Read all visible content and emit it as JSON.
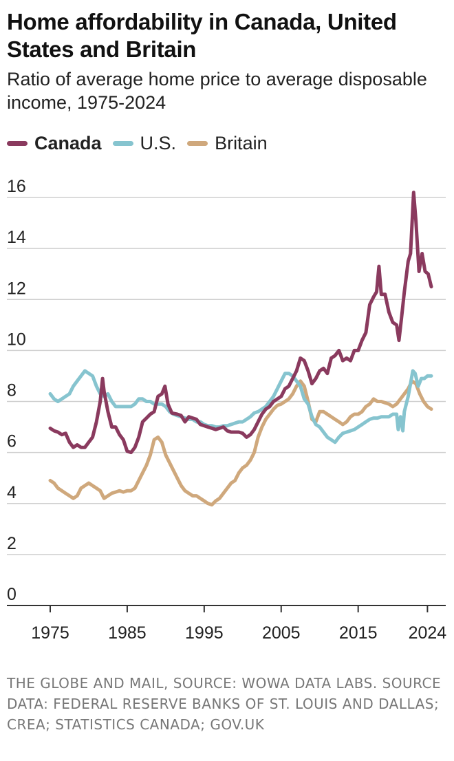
{
  "chart_data": {
    "type": "line",
    "title": "Home affordability in Canada, United States and Britain",
    "subtitle": "Ratio of average home price to average disposable income, 1975-2024",
    "xlabel": "",
    "ylabel": "",
    "xlim": [
      1975,
      2025
    ],
    "ylim": [
      0,
      16
    ],
    "x_ticks": [
      1975,
      1985,
      1995,
      2005,
      2015,
      2024
    ],
    "x_tick_labels": [
      "1975",
      "1985",
      "1995",
      "2005",
      "2015",
      "2024"
    ],
    "y_ticks": [
      0,
      2,
      4,
      6,
      8,
      10,
      12,
      14,
      16
    ],
    "y_tick_labels": [
      "0",
      "2",
      "4",
      "6",
      "8",
      "10",
      "12",
      "14",
      "16"
    ],
    "grid": "horizontal",
    "legend_position": "top-left",
    "series": [
      {
        "name": "Canada",
        "color": "#8a3a5e",
        "bold": true,
        "points": [
          [
            1975,
            6.95
          ],
          [
            1975.5,
            6.85
          ],
          [
            1976,
            6.8
          ],
          [
            1976.5,
            6.7
          ],
          [
            1977,
            6.75
          ],
          [
            1977.5,
            6.4
          ],
          [
            1978,
            6.2
          ],
          [
            1978.5,
            6.3
          ],
          [
            1979,
            6.2
          ],
          [
            1979.5,
            6.2
          ],
          [
            1980,
            6.4
          ],
          [
            1980.5,
            6.6
          ],
          [
            1981,
            7.2
          ],
          [
            1981.5,
            8.0
          ],
          [
            1981.8,
            8.9
          ],
          [
            1982,
            8.4
          ],
          [
            1982.5,
            7.6
          ],
          [
            1983,
            7.0
          ],
          [
            1983.5,
            7.0
          ],
          [
            1984,
            6.7
          ],
          [
            1984.5,
            6.5
          ],
          [
            1985,
            6.05
          ],
          [
            1985.5,
            6.0
          ],
          [
            1986,
            6.2
          ],
          [
            1986.5,
            6.6
          ],
          [
            1987,
            7.2
          ],
          [
            1987.5,
            7.35
          ],
          [
            1988,
            7.5
          ],
          [
            1988.5,
            7.6
          ],
          [
            1989,
            8.2
          ],
          [
            1989.5,
            8.3
          ],
          [
            1989.9,
            8.6
          ],
          [
            1990.3,
            7.9
          ],
          [
            1990.8,
            7.55
          ],
          [
            1991.5,
            7.5
          ],
          [
            1992,
            7.45
          ],
          [
            1992.5,
            7.2
          ],
          [
            1993,
            7.4
          ],
          [
            1993.5,
            7.35
          ],
          [
            1994,
            7.3
          ],
          [
            1994.5,
            7.1
          ],
          [
            1995,
            7.05
          ],
          [
            1995.5,
            7.0
          ],
          [
            1996,
            6.95
          ],
          [
            1996.5,
            6.9
          ],
          [
            1997,
            6.95
          ],
          [
            1997.5,
            7.0
          ],
          [
            1998,
            6.85
          ],
          [
            1998.5,
            6.8
          ],
          [
            1999,
            6.8
          ],
          [
            1999.5,
            6.8
          ],
          [
            2000,
            6.75
          ],
          [
            2000.5,
            6.6
          ],
          [
            2001,
            6.7
          ],
          [
            2001.5,
            6.9
          ],
          [
            2002,
            7.2
          ],
          [
            2002.5,
            7.5
          ],
          [
            2003,
            7.7
          ],
          [
            2003.5,
            7.8
          ],
          [
            2004,
            8.0
          ],
          [
            2004.5,
            8.1
          ],
          [
            2005,
            8.2
          ],
          [
            2005.5,
            8.5
          ],
          [
            2006,
            8.6
          ],
          [
            2006.5,
            8.9
          ],
          [
            2007,
            9.2
          ],
          [
            2007.5,
            9.7
          ],
          [
            2008,
            9.6
          ],
          [
            2008.5,
            9.2
          ],
          [
            2009,
            8.7
          ],
          [
            2009.5,
            8.9
          ],
          [
            2010,
            9.2
          ],
          [
            2010.5,
            9.3
          ],
          [
            2011,
            9.1
          ],
          [
            2011.5,
            9.7
          ],
          [
            2012,
            9.8
          ],
          [
            2012.5,
            10.0
          ],
          [
            2013,
            9.6
          ],
          [
            2013.5,
            9.7
          ],
          [
            2014,
            9.6
          ],
          [
            2014.5,
            10.0
          ],
          [
            2015,
            10.0
          ],
          [
            2015.5,
            10.4
          ],
          [
            2016,
            10.7
          ],
          [
            2016.5,
            11.8
          ],
          [
            2017,
            12.1
          ],
          [
            2017.4,
            12.3
          ],
          [
            2017.7,
            13.3
          ],
          [
            2018,
            12.2
          ],
          [
            2018.5,
            12.2
          ],
          [
            2019,
            11.5
          ],
          [
            2019.5,
            11.1
          ],
          [
            2020,
            11.0
          ],
          [
            2020.3,
            10.4
          ],
          [
            2020.6,
            11.2
          ],
          [
            2021,
            12.3
          ],
          [
            2021.5,
            13.5
          ],
          [
            2021.8,
            13.8
          ],
          [
            2022.2,
            16.2
          ],
          [
            2022.5,
            15.1
          ],
          [
            2022.9,
            13.1
          ],
          [
            2023.3,
            13.8
          ],
          [
            2023.7,
            13.1
          ],
          [
            2024.1,
            13.0
          ],
          [
            2024.5,
            12.5
          ]
        ]
      },
      {
        "name": "U.S.",
        "color": "#86c4cf",
        "bold": false,
        "points": [
          [
            1975,
            8.3
          ],
          [
            1975.5,
            8.1
          ],
          [
            1976,
            8.0
          ],
          [
            1976.5,
            8.1
          ],
          [
            1977,
            8.2
          ],
          [
            1977.5,
            8.3
          ],
          [
            1978,
            8.6
          ],
          [
            1978.5,
            8.8
          ],
          [
            1979,
            9.0
          ],
          [
            1979.5,
            9.2
          ],
          [
            1980,
            9.1
          ],
          [
            1980.5,
            9.0
          ],
          [
            1981,
            8.6
          ],
          [
            1981.5,
            8.3
          ],
          [
            1982,
            8.2
          ],
          [
            1982.5,
            8.3
          ],
          [
            1983,
            8.0
          ],
          [
            1983.5,
            7.8
          ],
          [
            1984,
            7.8
          ],
          [
            1984.5,
            7.8
          ],
          [
            1985,
            7.8
          ],
          [
            1985.5,
            7.8
          ],
          [
            1986,
            7.9
          ],
          [
            1986.5,
            8.1
          ],
          [
            1987,
            8.1
          ],
          [
            1987.5,
            8.0
          ],
          [
            1988,
            8.0
          ],
          [
            1988.5,
            7.9
          ],
          [
            1989,
            7.9
          ],
          [
            1989.5,
            7.9
          ],
          [
            1990,
            7.8
          ],
          [
            1990.5,
            7.6
          ],
          [
            1991,
            7.5
          ],
          [
            1991.5,
            7.45
          ],
          [
            1992,
            7.4
          ],
          [
            1992.5,
            7.35
          ],
          [
            1993,
            7.3
          ],
          [
            1993.5,
            7.3
          ],
          [
            1994,
            7.2
          ],
          [
            1994.5,
            7.2
          ],
          [
            1995,
            7.1
          ],
          [
            1995.5,
            7.05
          ],
          [
            1996,
            7.05
          ],
          [
            1996.5,
            7.0
          ],
          [
            1997,
            7.0
          ],
          [
            1997.5,
            7.05
          ],
          [
            1998,
            7.05
          ],
          [
            1998.5,
            7.1
          ],
          [
            1999,
            7.15
          ],
          [
            1999.5,
            7.2
          ],
          [
            2000,
            7.2
          ],
          [
            2000.5,
            7.3
          ],
          [
            2001,
            7.4
          ],
          [
            2001.5,
            7.55
          ],
          [
            2002,
            7.6
          ],
          [
            2002.5,
            7.7
          ],
          [
            2003,
            7.8
          ],
          [
            2003.5,
            8.0
          ],
          [
            2004,
            8.2
          ],
          [
            2004.5,
            8.5
          ],
          [
            2005,
            8.8
          ],
          [
            2005.5,
            9.1
          ],
          [
            2006,
            9.1
          ],
          [
            2006.5,
            9.0
          ],
          [
            2007,
            8.8
          ],
          [
            2007.5,
            8.6
          ],
          [
            2008,
            8.1
          ],
          [
            2008.5,
            7.9
          ],
          [
            2009,
            7.4
          ],
          [
            2009.5,
            7.1
          ],
          [
            2010,
            7.0
          ],
          [
            2010.5,
            6.8
          ],
          [
            2011,
            6.6
          ],
          [
            2011.5,
            6.5
          ],
          [
            2012,
            6.4
          ],
          [
            2012.5,
            6.6
          ],
          [
            2013,
            6.75
          ],
          [
            2013.5,
            6.8
          ],
          [
            2014,
            6.85
          ],
          [
            2014.5,
            6.9
          ],
          [
            2015,
            7.0
          ],
          [
            2015.5,
            7.1
          ],
          [
            2016,
            7.2
          ],
          [
            2016.5,
            7.3
          ],
          [
            2017,
            7.35
          ],
          [
            2017.5,
            7.35
          ],
          [
            2018,
            7.4
          ],
          [
            2018.5,
            7.4
          ],
          [
            2019,
            7.4
          ],
          [
            2019.5,
            7.5
          ],
          [
            2020,
            7.5
          ],
          [
            2020.2,
            6.9
          ],
          [
            2020.5,
            7.4
          ],
          [
            2020.8,
            6.85
          ],
          [
            2021,
            7.6
          ],
          [
            2021.5,
            8.2
          ],
          [
            2021.8,
            8.7
          ],
          [
            2022.1,
            9.2
          ],
          [
            2022.4,
            9.1
          ],
          [
            2022.8,
            8.6
          ],
          [
            2023.2,
            8.9
          ],
          [
            2023.6,
            8.9
          ],
          [
            2024,
            9.0
          ],
          [
            2024.5,
            9.0
          ]
        ]
      },
      {
        "name": "Britain",
        "color": "#cfa87c",
        "bold": false,
        "points": [
          [
            1975,
            4.9
          ],
          [
            1975.5,
            4.8
          ],
          [
            1976,
            4.6
          ],
          [
            1976.5,
            4.5
          ],
          [
            1977,
            4.4
          ],
          [
            1977.5,
            4.3
          ],
          [
            1978,
            4.2
          ],
          [
            1978.5,
            4.3
          ],
          [
            1979,
            4.6
          ],
          [
            1979.5,
            4.7
          ],
          [
            1980,
            4.8
          ],
          [
            1980.5,
            4.7
          ],
          [
            1981,
            4.6
          ],
          [
            1981.5,
            4.5
          ],
          [
            1982,
            4.2
          ],
          [
            1982.5,
            4.3
          ],
          [
            1983,
            4.4
          ],
          [
            1983.5,
            4.45
          ],
          [
            1984,
            4.5
          ],
          [
            1984.5,
            4.45
          ],
          [
            1985,
            4.5
          ],
          [
            1985.5,
            4.5
          ],
          [
            1986,
            4.6
          ],
          [
            1986.5,
            4.9
          ],
          [
            1987,
            5.2
          ],
          [
            1987.5,
            5.5
          ],
          [
            1988,
            5.9
          ],
          [
            1988.5,
            6.5
          ],
          [
            1989,
            6.6
          ],
          [
            1989.5,
            6.4
          ],
          [
            1990,
            5.9
          ],
          [
            1990.5,
            5.6
          ],
          [
            1991,
            5.3
          ],
          [
            1991.5,
            5.0
          ],
          [
            1992,
            4.7
          ],
          [
            1992.5,
            4.5
          ],
          [
            1993,
            4.4
          ],
          [
            1993.5,
            4.3
          ],
          [
            1994,
            4.3
          ],
          [
            1994.5,
            4.2
          ],
          [
            1995,
            4.1
          ],
          [
            1995.5,
            4.0
          ],
          [
            1996,
            3.95
          ],
          [
            1996.5,
            4.1
          ],
          [
            1997,
            4.2
          ],
          [
            1997.5,
            4.4
          ],
          [
            1998,
            4.6
          ],
          [
            1998.5,
            4.8
          ],
          [
            1999,
            4.9
          ],
          [
            1999.5,
            5.2
          ],
          [
            2000,
            5.4
          ],
          [
            2000.5,
            5.5
          ],
          [
            2001,
            5.7
          ],
          [
            2001.5,
            6.0
          ],
          [
            2002,
            6.6
          ],
          [
            2002.5,
            7.0
          ],
          [
            2003,
            7.3
          ],
          [
            2003.5,
            7.5
          ],
          [
            2004,
            7.7
          ],
          [
            2004.5,
            7.85
          ],
          [
            2005,
            7.9
          ],
          [
            2005.5,
            8.0
          ],
          [
            2006,
            8.1
          ],
          [
            2006.5,
            8.3
          ],
          [
            2007,
            8.6
          ],
          [
            2007.5,
            8.8
          ],
          [
            2008,
            8.6
          ],
          [
            2008.5,
            8.0
          ],
          [
            2009,
            7.3
          ],
          [
            2009.5,
            7.2
          ],
          [
            2010,
            7.6
          ],
          [
            2010.5,
            7.6
          ],
          [
            2011,
            7.5
          ],
          [
            2011.5,
            7.4
          ],
          [
            2012,
            7.3
          ],
          [
            2012.5,
            7.2
          ],
          [
            2013,
            7.1
          ],
          [
            2013.5,
            7.2
          ],
          [
            2014,
            7.4
          ],
          [
            2014.5,
            7.5
          ],
          [
            2015,
            7.5
          ],
          [
            2015.5,
            7.6
          ],
          [
            2016,
            7.8
          ],
          [
            2016.5,
            7.9
          ],
          [
            2017,
            8.1
          ],
          [
            2017.5,
            8.0
          ],
          [
            2018,
            8.0
          ],
          [
            2018.5,
            7.95
          ],
          [
            2019,
            7.9
          ],
          [
            2019.5,
            7.8
          ],
          [
            2020,
            7.9
          ],
          [
            2020.5,
            8.1
          ],
          [
            2021,
            8.3
          ],
          [
            2021.5,
            8.5
          ],
          [
            2022,
            8.8
          ],
          [
            2022.5,
            8.7
          ],
          [
            2023,
            8.3
          ],
          [
            2023.5,
            8.0
          ],
          [
            2024,
            7.8
          ],
          [
            2024.5,
            7.7
          ]
        ]
      }
    ]
  },
  "source_text": "THE GLOBE AND MAIL, SOURCE: WOWA DATA LABS. SOURCE DATA: FEDERAL RESERVE BANKS OF ST. LOUIS AND DALLAS; CREA; STATISTICS CANADA; GOV.UK"
}
